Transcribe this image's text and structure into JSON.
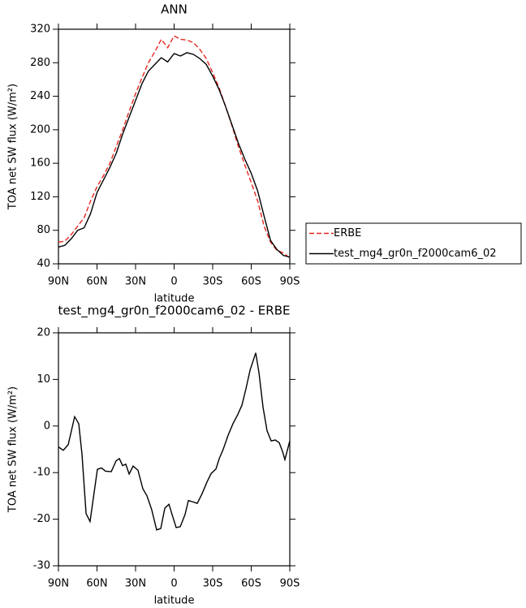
{
  "chart_data": [
    {
      "type": "line",
      "title": "ANN",
      "x_label": "latitude",
      "y_label": "TOA net SW flux (W/m²)",
      "x": [
        90,
        85,
        80,
        75,
        70,
        65,
        60,
        55,
        50,
        45,
        40,
        35,
        30,
        25,
        20,
        15,
        10,
        5,
        0,
        -5,
        -10,
        -15,
        -20,
        -25,
        -30,
        -35,
        -40,
        -45,
        -50,
        -55,
        -60,
        -65,
        -70,
        -75,
        -80,
        -85,
        -90
      ],
      "series": [
        {
          "name": "ERBE",
          "color": "#e8261f",
          "linestyle": "dashed",
          "values": [
            66,
            67,
            75,
            85,
            95,
            115,
            132,
            145,
            160,
            180,
            200,
            222,
            243,
            262,
            280,
            293,
            308,
            298,
            312,
            308,
            307,
            304,
            296,
            285,
            268,
            250,
            228,
            205,
            180,
            158,
            137,
            115,
            85,
            66,
            56,
            53,
            47
          ]
        },
        {
          "name": "test_mg4_gr0n_f2000cam6_02",
          "color": "#000000",
          "linestyle": "solid",
          "values": [
            60,
            62,
            70,
            80,
            83,
            100,
            125,
            140,
            155,
            172,
            195,
            215,
            235,
            255,
            270,
            278,
            286,
            281,
            291,
            288,
            292,
            290,
            285,
            278,
            264,
            248,
            228,
            206,
            184,
            165,
            148,
            127,
            97,
            68,
            57,
            50,
            48
          ]
        }
      ],
      "xlim": [
        90,
        -90
      ],
      "xticks": [
        {
          "value": 90,
          "label": "90N"
        },
        {
          "value": 60,
          "label": "60N"
        },
        {
          "value": 30,
          "label": "30N"
        },
        0,
        {
          "value": -30,
          "label": "30S"
        },
        {
          "value": -60,
          "label": "60S"
        },
        {
          "value": -90,
          "label": "90S"
        }
      ],
      "ylim": [
        40,
        320
      ],
      "yticks": [
        40,
        80,
        120,
        160,
        200,
        240,
        280,
        320
      ],
      "grid": false,
      "legend": "right"
    },
    {
      "type": "line",
      "title": "test_mg4_gr0n_f2000cam6_02 - ERBE",
      "x_label": "latitude",
      "y_label": "TOA net SW flux (W/m²)",
      "x": [
        90,
        86.2,
        82.4,
        77.4,
        74.2,
        71.7,
        68.5,
        65.4,
        59.7,
        56.5,
        53.4,
        48.9,
        45.2,
        42.6,
        40.1,
        37.6,
        35,
        31.9,
        28.1,
        24.3,
        21.1,
        17.4,
        13.6,
        10.4,
        7.2,
        4,
        1.6,
        -1.6,
        -4.8,
        -8.5,
        -11.1,
        -14.9,
        -18,
        -21.8,
        -25.6,
        -28.8,
        -32.6,
        -35.1,
        -38.2,
        -42,
        -45.8,
        -49.6,
        -52.8,
        -55.9,
        -59.1,
        -63.5,
        -66,
        -69.2,
        -72.3,
        -75.5,
        -78.7,
        -81.8,
        -84.4,
        -86.2,
        -90
      ],
      "series": [
        {
          "color": "#000000",
          "linestyle": "solid",
          "values": [
            -4.5,
            -5.2,
            -4,
            2,
            0.5,
            -6,
            -18.8,
            -20.5,
            -9.3,
            -9,
            -9.7,
            -9.8,
            -7.5,
            -7,
            -8.5,
            -8.2,
            -10.3,
            -8.6,
            -9.5,
            -13.5,
            -15,
            -18,
            -22.3,
            -22,
            -17.6,
            -16.8,
            -19,
            -21.8,
            -21.6,
            -19,
            -16,
            -16.3,
            -16.6,
            -14.5,
            -12,
            -10.2,
            -9.2,
            -7,
            -5,
            -2,
            0.5,
            2.5,
            4.5,
            8,
            12,
            15.7,
            11.5,
            4,
            -1,
            -3.2,
            -3,
            -3.6,
            -5.5,
            -7.2,
            -3.2
          ]
        }
      ],
      "xlim": [
        90,
        -90
      ],
      "xticks": [
        {
          "value": 90,
          "label": "90N"
        },
        {
          "value": 60,
          "label": "60N"
        },
        {
          "value": 30,
          "label": "30N"
        },
        0,
        {
          "value": -30,
          "label": "30S"
        },
        {
          "value": -60,
          "label": "60S"
        },
        {
          "value": -90,
          "label": "90S"
        }
      ],
      "ylim": [
        -30,
        20
      ],
      "yticks": [
        -30,
        -20,
        -10,
        0,
        10,
        20
      ],
      "grid": false
    }
  ]
}
